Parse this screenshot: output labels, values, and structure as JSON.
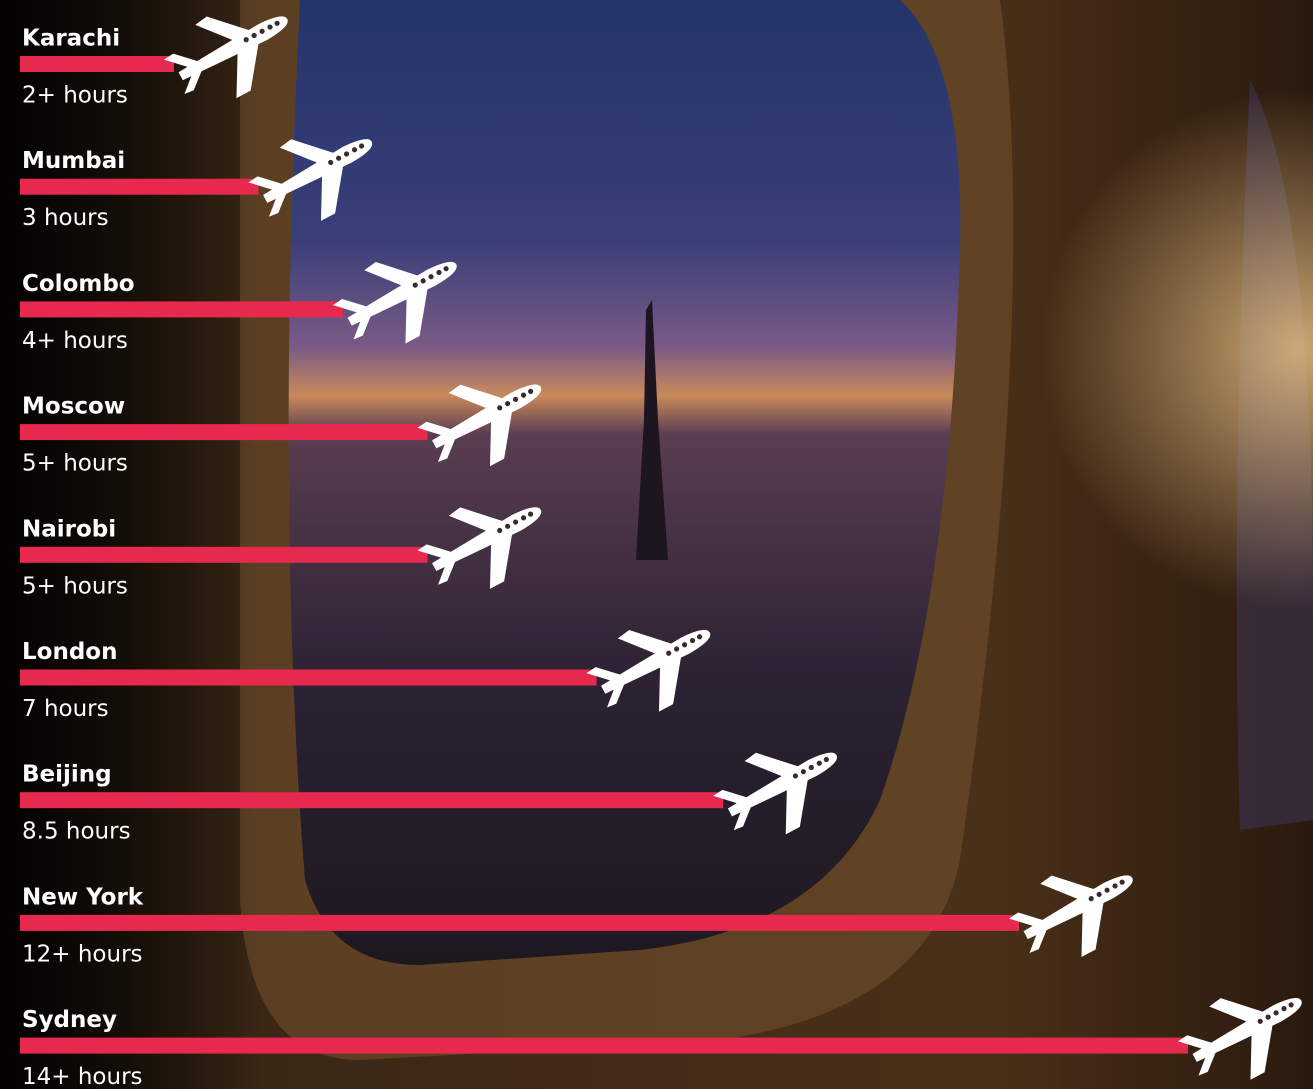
{
  "chart_data": {
    "type": "bar",
    "categories": [
      "Karachi",
      "Mumbai",
      "Colombo",
      "Moscow",
      "Nairobi",
      "London",
      "Beijing",
      "New York",
      "Sydney"
    ],
    "values": [
      2,
      3,
      4,
      5,
      5,
      7,
      8.5,
      12,
      14
    ],
    "value_labels": [
      "2+ hours",
      "3 hours",
      "4+ hours",
      "5+ hours",
      "5+ hours",
      "7 hours",
      "8.5 hours",
      "12+ hours",
      "14+ hours"
    ],
    "color": "#e8294f"
  }
}
